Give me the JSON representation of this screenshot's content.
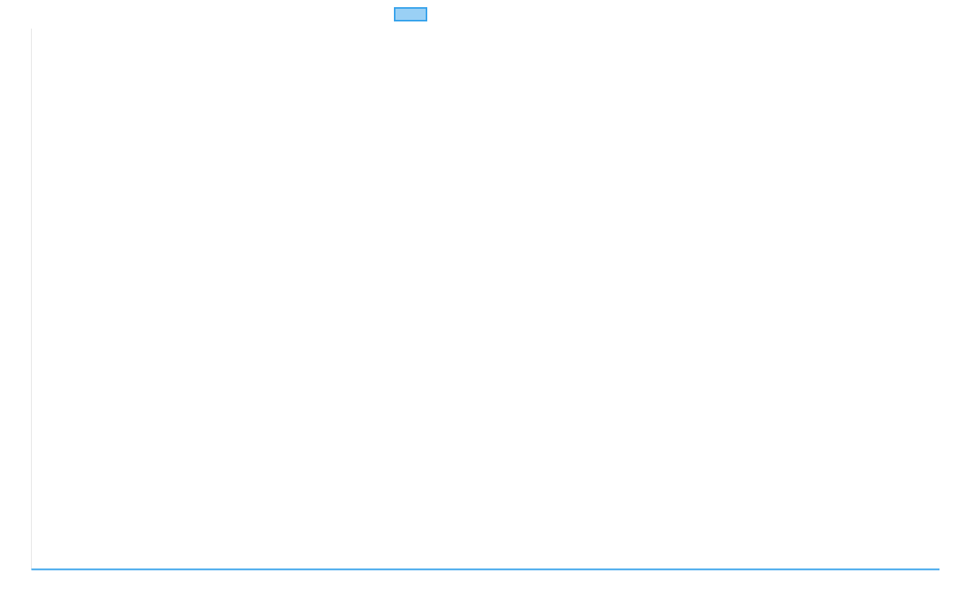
{
  "chart_data": {
    "type": "line",
    "title": "",
    "xlabel": "",
    "ylabel": "",
    "categories": [],
    "series": [
      {
        "label": "",
        "values": [],
        "border_color": "#36a2eb",
        "fill_color": "#9ad0f5"
      }
    ],
    "legend_position": "top",
    "grid": false,
    "axis_color": "#e5e5e5"
  }
}
